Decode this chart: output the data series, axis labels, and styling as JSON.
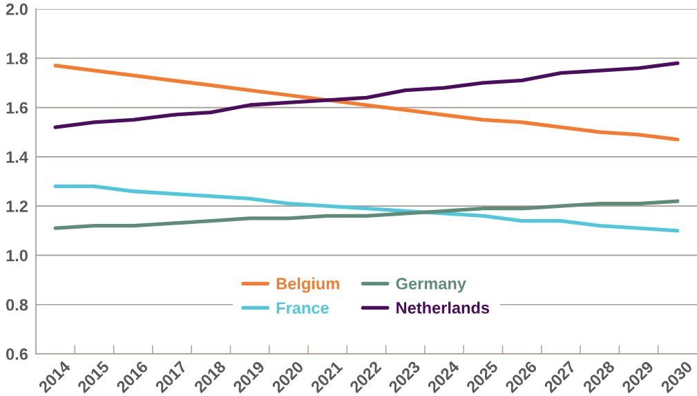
{
  "chart_data": {
    "type": "line",
    "categories": [
      "2014",
      "2015",
      "2016",
      "2017",
      "2018",
      "2019",
      "2020",
      "2021",
      "2022",
      "2023",
      "2024",
      "2025",
      "2026",
      "2027",
      "2028",
      "2029",
      "2030"
    ],
    "series": [
      {
        "name": "Belgium",
        "color": "#f47b30",
        "values": [
          1.77,
          1.75,
          1.73,
          1.71,
          1.69,
          1.67,
          1.65,
          1.63,
          1.61,
          1.59,
          1.57,
          1.55,
          1.54,
          1.52,
          1.5,
          1.49,
          1.47
        ]
      },
      {
        "name": "France",
        "color": "#52c7dc",
        "values": [
          1.28,
          1.28,
          1.26,
          1.25,
          1.24,
          1.23,
          1.21,
          1.2,
          1.19,
          1.18,
          1.17,
          1.16,
          1.14,
          1.14,
          1.12,
          1.11,
          1.1
        ]
      },
      {
        "name": "Germany",
        "color": "#5e8c78",
        "values": [
          1.11,
          1.12,
          1.12,
          1.13,
          1.14,
          1.15,
          1.15,
          1.16,
          1.16,
          1.17,
          1.18,
          1.19,
          1.19,
          1.2,
          1.21,
          1.21,
          1.22
        ]
      },
      {
        "name": "Netherlands",
        "color": "#4a0e5c",
        "values": [
          1.52,
          1.54,
          1.55,
          1.57,
          1.58,
          1.61,
          1.62,
          1.63,
          1.64,
          1.67,
          1.68,
          1.7,
          1.71,
          1.74,
          1.75,
          1.76,
          1.78
        ]
      }
    ],
    "ylim": [
      0.6,
      2.0
    ],
    "yticks": [
      0.6,
      0.8,
      {
        "value": 1,
        "label": "1.0"
      },
      1.2,
      1.4,
      1.6,
      1.8,
      {
        "value": 2,
        "label": "2.0"
      }
    ],
    "grid": "y",
    "legend": "bottom",
    "line_style": "solid"
  }
}
